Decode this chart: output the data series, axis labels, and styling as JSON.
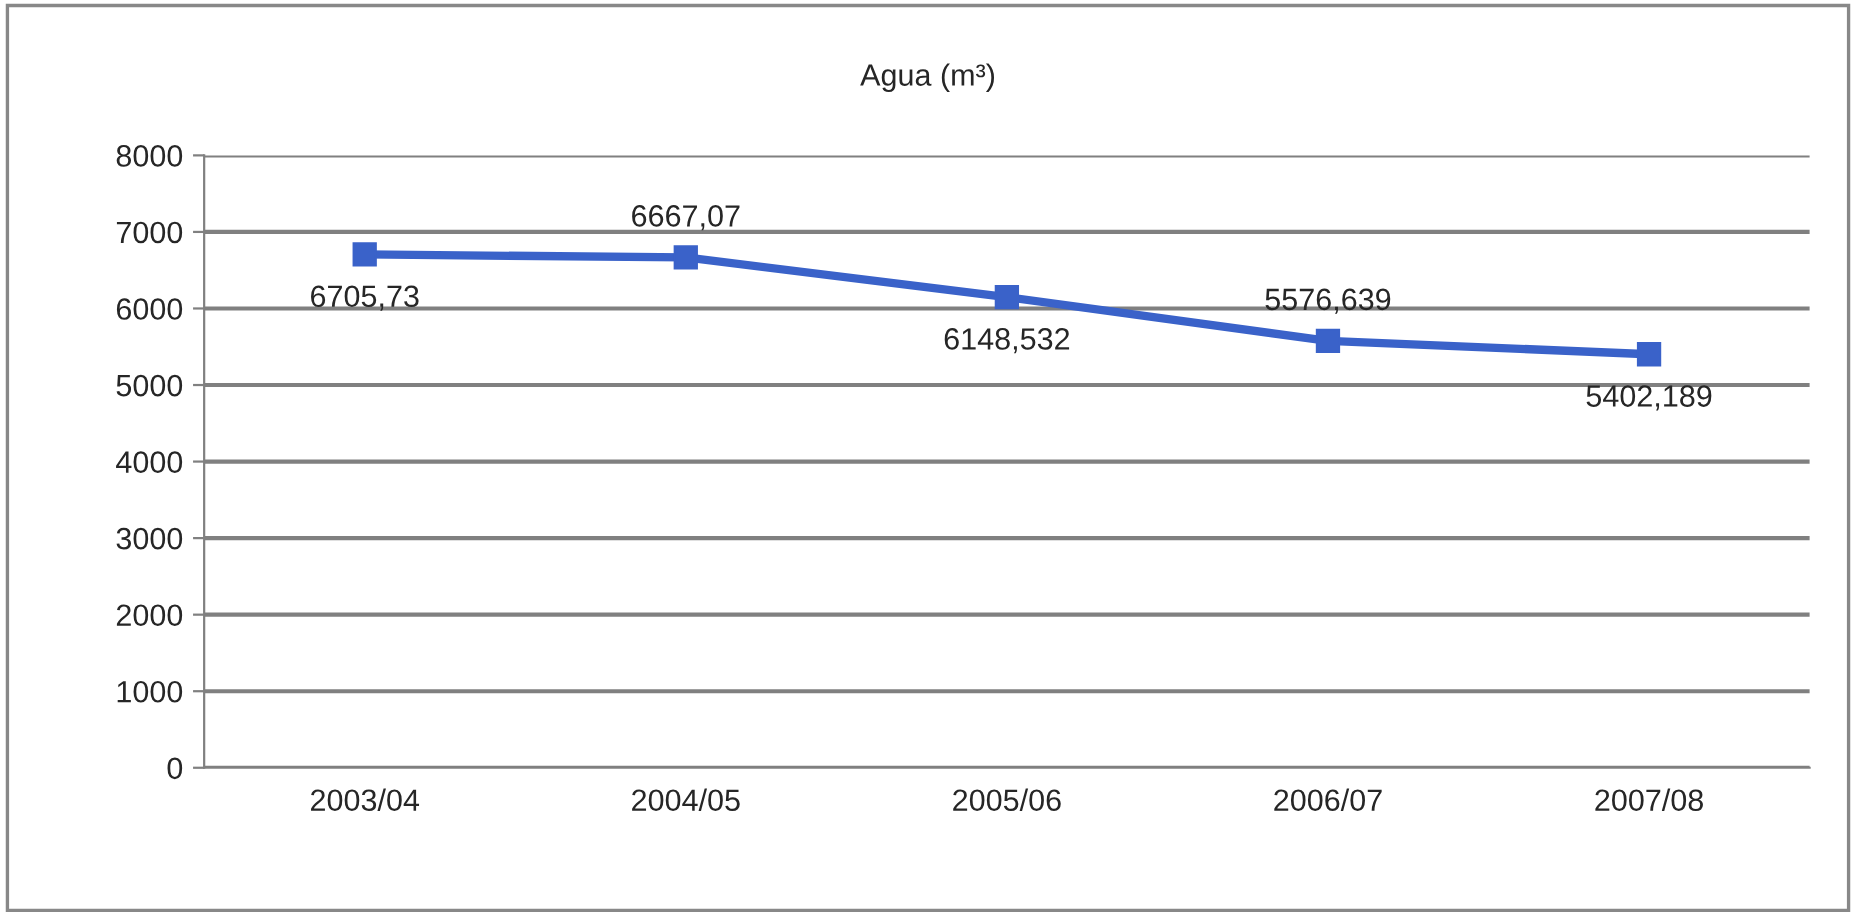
{
  "chart_data": {
    "type": "line",
    "title": "Agua (m³)",
    "categories": [
      "2003/04",
      "2004/05",
      "2005/06",
      "2006/07",
      "2007/08"
    ],
    "series": [
      {
        "color": "#3a62c9",
        "values": [
          6705.73,
          6667.07,
          6148.532,
          5576.639,
          5402.189
        ],
        "value_labels": [
          "6705,73",
          "6667,07",
          "6148,532",
          "5576,639",
          "5402,189"
        ]
      }
    ],
    "ylim": [
      0,
      8000
    ],
    "yticks": [
      0,
      1000,
      2000,
      3000,
      4000,
      5000,
      6000,
      7000,
      8000
    ],
    "grid": "y",
    "marker": "square",
    "line_style": "solid",
    "legend": false
  }
}
